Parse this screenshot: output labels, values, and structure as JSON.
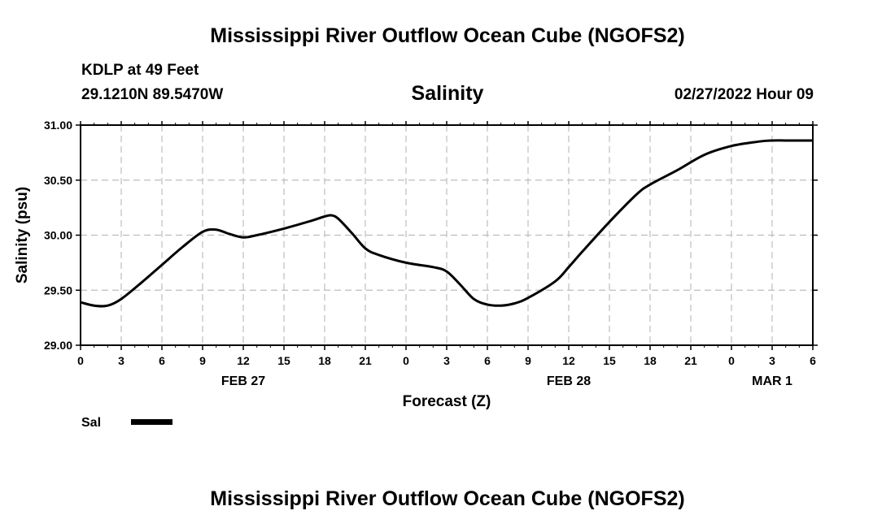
{
  "header": {
    "title": "Mississippi River Outflow Ocean Cube (NGOFS2)",
    "station": "KDLP at 49 Feet",
    "coords": "29.1210N  89.5470W",
    "variable": "Salinity",
    "datetime": "02/27/2022 Hour 09"
  },
  "footer": {
    "title": "Mississippi River Outflow Ocean Cube (NGOFS2)"
  },
  "chart_data": {
    "type": "line",
    "title": "Salinity",
    "xlabel": "Forecast (Z)",
    "ylabel": "Salinity (psu)",
    "xlim": [
      0,
      54
    ],
    "ylim": [
      29.0,
      31.0
    ],
    "yticks": [
      29.0,
      29.5,
      30.0,
      30.5,
      31.0
    ],
    "ytick_labels": [
      "29.00",
      "29.50",
      "30.00",
      "30.50",
      "31.00"
    ],
    "xticks": [
      0,
      3,
      6,
      9,
      12,
      15,
      18,
      21,
      24,
      27,
      30,
      33,
      36,
      39,
      42,
      45,
      48,
      51,
      54
    ],
    "xtick_labels": [
      "0",
      "3",
      "6",
      "9",
      "12",
      "15",
      "18",
      "21",
      "0",
      "3",
      "6",
      "9",
      "12",
      "15",
      "18",
      "21",
      "0",
      "3",
      "6"
    ],
    "date_labels": [
      {
        "label": "FEB 27",
        "x": 12
      },
      {
        "label": "FEB 28",
        "x": 36
      },
      {
        "label": "MAR 1",
        "x": 51
      }
    ],
    "grid": true,
    "legend": {
      "placement": "bottom-left",
      "entries": [
        {
          "name": "Sal"
        }
      ]
    },
    "series": [
      {
        "name": "Sal",
        "x": [
          0,
          1,
          2,
          3,
          4.5,
          6,
          7.5,
          9,
          10,
          11,
          12,
          13,
          15,
          17,
          18,
          18.5,
          19,
          20,
          21,
          22,
          24,
          26,
          27,
          28,
          29,
          30,
          31,
          32,
          33,
          35,
          36,
          37,
          39,
          41,
          42,
          44,
          46,
          48,
          50,
          51,
          52,
          53,
          54
        ],
        "values": [
          29.39,
          29.36,
          29.36,
          29.42,
          29.57,
          29.73,
          29.89,
          30.03,
          30.05,
          30.01,
          29.98,
          30.0,
          30.06,
          30.13,
          30.17,
          30.18,
          30.15,
          30.02,
          29.88,
          29.82,
          29.75,
          29.71,
          29.67,
          29.55,
          29.42,
          29.37,
          29.36,
          29.38,
          29.43,
          29.58,
          29.71,
          29.85,
          30.12,
          30.37,
          30.46,
          30.59,
          30.73,
          30.81,
          30.85,
          30.86,
          30.86,
          30.86,
          30.86
        ]
      }
    ]
  }
}
